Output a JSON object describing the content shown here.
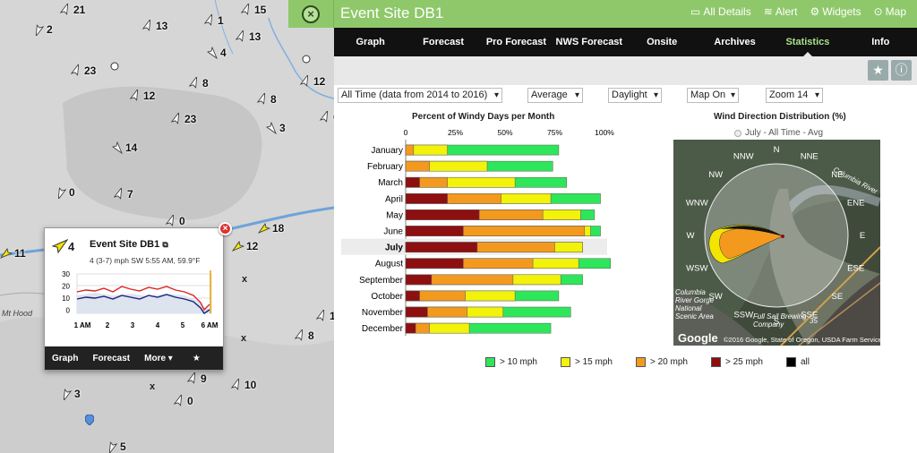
{
  "map": {
    "markers": [
      {
        "label": "21",
        "color": "#fff"
      },
      {
        "label": "2",
        "color": "#fff"
      },
      {
        "label": "13",
        "color": "#fff"
      },
      {
        "label": "1",
        "color": "#fff"
      },
      {
        "label": "15",
        "color": "#fff"
      },
      {
        "label": "13",
        "color": "#fff"
      },
      {
        "label": "8",
        "color": "#fff"
      },
      {
        "label": "23",
        "color": "#fff"
      },
      {
        "label": "4",
        "color": "#fff"
      },
      {
        "label": "12",
        "color": "#fff"
      },
      {
        "label": "8",
        "color": "#fff"
      },
      {
        "label": "23",
        "color": "#fff"
      },
      {
        "label": "3",
        "color": "#fff"
      },
      {
        "label": "12",
        "color": "#fff"
      },
      {
        "label": "14",
        "color": "#fff"
      },
      {
        "label": "0",
        "color": "#fff"
      },
      {
        "label": "0",
        "color": "#fff"
      },
      {
        "label": "7",
        "color": "#fff"
      },
      {
        "label": "11",
        "color": "#f2e600"
      },
      {
        "label": "12",
        "color": "#f2e600"
      },
      {
        "label": "18",
        "color": "#f2e600"
      },
      {
        "label": "8",
        "color": "#fff"
      },
      {
        "label": "9",
        "color": "#fff"
      },
      {
        "label": "10",
        "color": "#fff"
      },
      {
        "label": "0",
        "color": "#fff"
      },
      {
        "label": "3",
        "color": "#fff"
      },
      {
        "label": "5",
        "color": "#fff"
      },
      {
        "label": "0",
        "color": "#fff"
      },
      {
        "label": "12",
        "color": "#fff"
      }
    ],
    "place_label": "Mt Hood"
  },
  "popup": {
    "speed": "4",
    "title": "Event Site DB1",
    "subtitle": "4 (3-7) mph SW 5:55 AM, 59.9°F",
    "y_ticks": [
      "30",
      "20",
      "10",
      "0"
    ],
    "x_ticks": [
      "1 AM",
      "2",
      "3",
      "4",
      "5",
      "6 AM"
    ],
    "nav": [
      "Graph",
      "Forecast",
      "More ▾",
      "★"
    ]
  },
  "header": {
    "title": "Event Site DB1",
    "links": [
      "All Details",
      "Alert",
      "Widgets",
      "Map"
    ]
  },
  "tabs": [
    "Graph",
    "Forecast",
    "Pro Forecast",
    "NWS Forecast",
    "Onsite",
    "Archives",
    "Statistics",
    "Info"
  ],
  "active_tab": "Statistics",
  "filters": {
    "range": "All Time (data from 2014 to 2016)",
    "stat": "Average",
    "period": "Daylight",
    "map": "Map On",
    "zoom": "Zoom 14"
  },
  "chart_data": [
    {
      "type": "bar",
      "title": "Percent of Windy Days per Month",
      "x_ticks": [
        "0",
        "25%",
        "50%",
        "75%",
        "100%"
      ],
      "xlim": [
        0,
        100
      ],
      "categories": [
        "January",
        "February",
        "March",
        "April",
        "May",
        "June",
        "July",
        "August",
        "September",
        "October",
        "November",
        "December"
      ],
      "highlight": "July",
      "series": [
        {
          "name": "> 10 mph",
          "color": "#2ee65a",
          "values": [
            77,
            74,
            81,
            98,
            95,
            98,
            89,
            103,
            89,
            77,
            83,
            73
          ]
        },
        {
          "name": "> 15 mph",
          "color": "#f2f20a",
          "values": [
            21,
            41,
            55,
            73,
            88,
            93,
            89,
            87,
            78,
            55,
            49,
            32
          ]
        },
        {
          "name": "> 20 mph",
          "color": "#f39a1e",
          "values": [
            4,
            12,
            21,
            48,
            69,
            90,
            75,
            64,
            54,
            30,
            31,
            12
          ]
        },
        {
          "name": "> 25 mph",
          "color": "#8e0f0f",
          "values": [
            0,
            0,
            7,
            21,
            37,
            29,
            36,
            29,
            13,
            7,
            11,
            5
          ]
        },
        {
          "name": "all",
          "color": "#000000",
          "values": [
            0,
            0,
            0,
            0,
            0,
            0,
            0,
            0,
            0,
            0,
            0,
            0
          ]
        }
      ]
    },
    {
      "type": "rose",
      "title": "Wind Direction Distribution (%)",
      "series_label": "July - All Time - Avg",
      "directions": [
        "N",
        "NNE",
        "NE",
        "ENE",
        "E",
        "ESE",
        "SE",
        "SSE",
        "S",
        "SSW",
        "SW",
        "WSW",
        "W",
        "WNW",
        "NW",
        "NNW"
      ],
      "attribution": "©2016 Google, State of Oregon, USDA Farm Service Agency",
      "logo": "Google",
      "map_labels": [
        "Columbia River",
        "Columbia",
        "River Gorge",
        "National",
        "Scenic Area",
        "Full Sail Brewing",
        "Company",
        "35"
      ]
    }
  ]
}
